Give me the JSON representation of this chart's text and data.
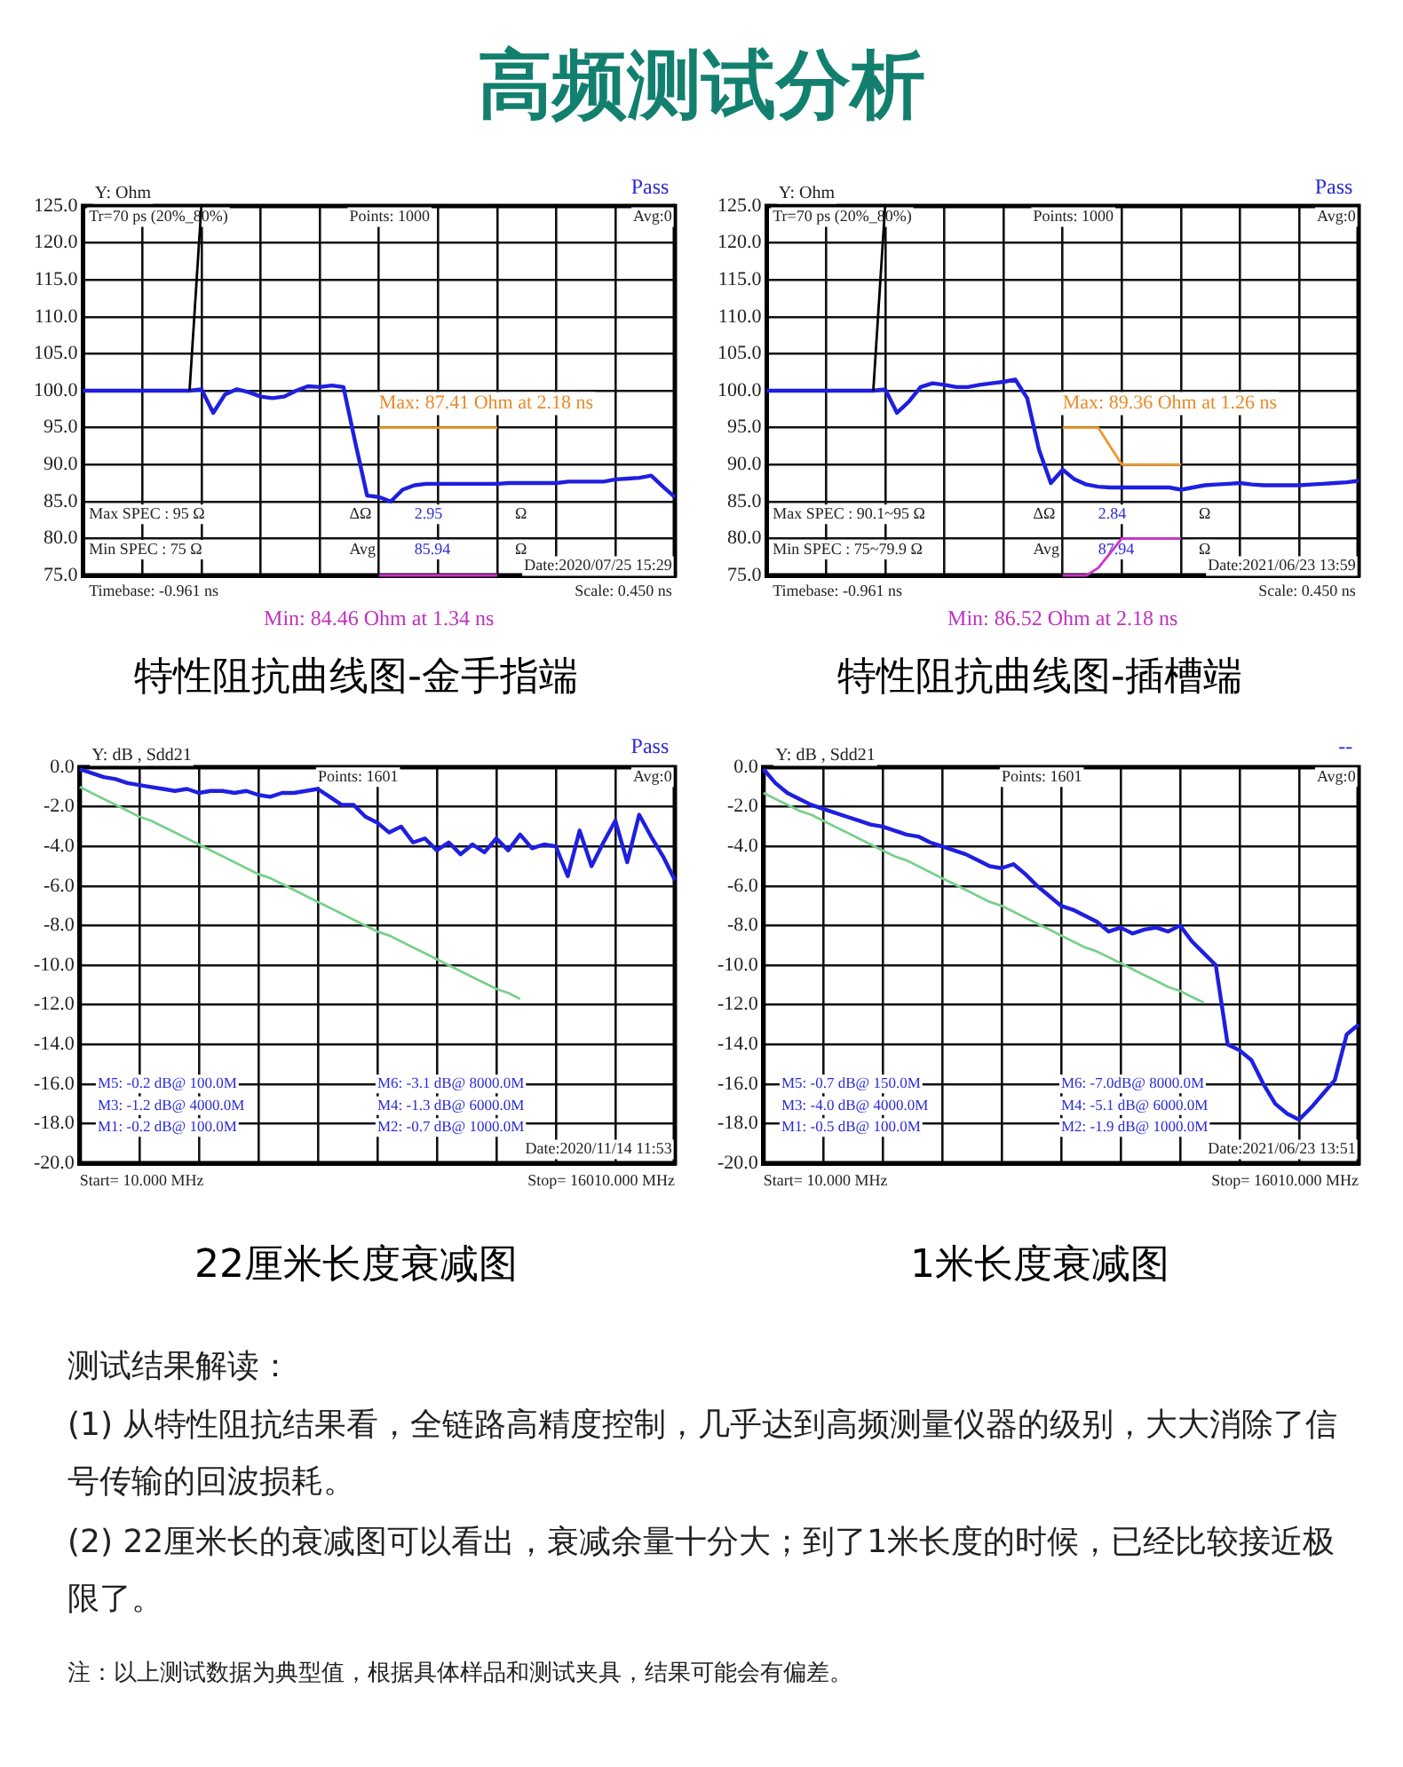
{
  "chart_data": [
    {
      "type": "other",
      "title": "高频测试分析"
    },
    {
      "type": "line",
      "title": "特性阻抗曲线图-金手指端",
      "grid": true,
      "legend": false,
      "tick_labels": "y",
      "marker": "none",
      "line_style": "solid",
      "categories": [
        null,
        null,
        null,
        null,
        null,
        null,
        null,
        null,
        null,
        null,
        null,
        null,
        null,
        null,
        null,
        null,
        null,
        null,
        null,
        null,
        null,
        null,
        null,
        null,
        null,
        null,
        null,
        null,
        null,
        null,
        null,
        null,
        null,
        null,
        null,
        null,
        null,
        null,
        null,
        null,
        null,
        null,
        null,
        null,
        null,
        null,
        null,
        null,
        null,
        null,
        null
      ],
      "ylim": [
        75,
        125
      ],
      "yticks": [
        {
          "value": 75,
          "label": "75.0"
        },
        {
          "value": 80,
          "label": "80.0"
        },
        {
          "value": 85,
          "label": "85.0"
        },
        {
          "value": 90,
          "label": "90.0"
        },
        {
          "value": 95,
          "label": "95.0"
        },
        {
          "value": 100,
          "label": "100.0"
        },
        {
          "value": 105,
          "label": "105.0"
        },
        {
          "value": 110,
          "label": "110.0"
        },
        {
          "value": 115,
          "label": "115.0"
        },
        {
          "value": 120,
          "label": "120.0"
        },
        {
          "value": 125,
          "label": "125.0"
        }
      ],
      "series": [
        {
          "color": "#000000",
          "values": [
            null,
            null,
            null,
            null,
            null,
            null,
            null,
            null,
            null,
            100,
            125,
            null,
            null,
            null,
            null,
            null,
            null,
            null,
            null,
            null,
            null,
            null,
            null,
            null,
            null,
            null,
            null,
            null,
            null,
            null,
            null,
            null,
            null,
            null,
            null,
            null,
            null,
            null,
            null,
            null,
            null,
            null,
            null,
            null,
            null,
            null,
            null,
            null,
            null,
            null,
            null
          ]
        },
        {
          "color": "#f0962e",
          "values": [
            null,
            null,
            null,
            null,
            null,
            null,
            null,
            null,
            null,
            null,
            null,
            null,
            null,
            null,
            null,
            null,
            null,
            null,
            null,
            null,
            null,
            null,
            null,
            null,
            null,
            95,
            95,
            95,
            95,
            95,
            95,
            95,
            95,
            95,
            95,
            95,
            null,
            null,
            null,
            null,
            null,
            null,
            null,
            null,
            null,
            null,
            null,
            null,
            null,
            null,
            null
          ]
        },
        {
          "color": "#cc33cc",
          "values": [
            null,
            null,
            null,
            null,
            null,
            null,
            null,
            null,
            null,
            null,
            null,
            null,
            null,
            null,
            null,
            null,
            null,
            null,
            null,
            null,
            null,
            null,
            null,
            null,
            null,
            75,
            75,
            75,
            75,
            75,
            75,
            75,
            75,
            75,
            75,
            75,
            null,
            null,
            null,
            null,
            null,
            null,
            null,
            null,
            null,
            null,
            null,
            null,
            null,
            null,
            null
          ]
        },
        {
          "color": "#1f1fe0",
          "values": [
            100,
            100,
            100,
            100,
            100,
            100,
            100,
            100,
            100,
            100,
            100.2,
            97,
            99.5,
            100.2,
            99.8,
            99.2,
            99,
            99.2,
            100,
            100.6,
            100.5,
            100.7,
            100.5,
            93,
            85.8,
            85.6,
            85,
            86.6,
            87.2,
            87.4,
            87.4,
            87.4,
            87.4,
            87.4,
            87.4,
            87.4,
            87.5,
            87.5,
            87.5,
            87.5,
            87.5,
            87.7,
            87.7,
            87.7,
            87.7,
            88,
            88.1,
            88.2,
            88.5,
            87,
            85.6
          ]
        }
      ],
      "annotations": [
        "Y: Ohm",
        "Pass",
        "Tr=70 ps (20%_80%)",
        "Points: 1000",
        "Avg:0",
        "Max: 87.41 Ohm at 2.18 ns",
        "Max SPEC : 95 Ω",
        "ΔΩ",
        "2.95",
        "Ω",
        "Min SPEC : 75 Ω",
        "Avg",
        "85.94",
        "Ω",
        "Date:2020/07/25 15:29",
        "Timebase: -0.961 ns",
        "Min: 84.46 Ohm at 1.34 ns",
        "Scale: 0.450 ns"
      ]
    },
    {
      "type": "line",
      "title": "特性阻抗曲线图-插槽端",
      "grid": true,
      "legend": false,
      "tick_labels": "y",
      "marker": "none",
      "line_style": "solid",
      "categories": [
        null,
        null,
        null,
        null,
        null,
        null,
        null,
        null,
        null,
        null,
        null,
        null,
        null,
        null,
        null,
        null,
        null,
        null,
        null,
        null,
        null,
        null,
        null,
        null,
        null,
        null,
        null,
        null,
        null,
        null,
        null,
        null,
        null,
        null,
        null,
        null,
        null,
        null,
        null,
        null,
        null,
        null,
        null,
        null,
        null,
        null,
        null,
        null,
        null,
        null,
        null
      ],
      "ylim": [
        75,
        125
      ],
      "yticks": [
        {
          "value": 75,
          "label": "75.0"
        },
        {
          "value": 80,
          "label": "80.0"
        },
        {
          "value": 85,
          "label": "85.0"
        },
        {
          "value": 90,
          "label": "90.0"
        },
        {
          "value": 95,
          "label": "95.0"
        },
        {
          "value": 100,
          "label": "100.0"
        },
        {
          "value": 105,
          "label": "105.0"
        },
        {
          "value": 110,
          "label": "110.0"
        },
        {
          "value": 115,
          "label": "115.0"
        },
        {
          "value": 120,
          "label": "120.0"
        },
        {
          "value": 125,
          "label": "125.0"
        }
      ],
      "series": [
        {
          "color": "#000000",
          "values": [
            null,
            null,
            null,
            null,
            null,
            null,
            null,
            null,
            null,
            100,
            125,
            null,
            null,
            null,
            null,
            null,
            null,
            null,
            null,
            null,
            null,
            null,
            null,
            null,
            null,
            null,
            null,
            null,
            null,
            null,
            null,
            null,
            null,
            null,
            null,
            null,
            null,
            null,
            null,
            null,
            null,
            null,
            null,
            null,
            null,
            null,
            null,
            null,
            null,
            null,
            null
          ]
        },
        {
          "color": "#f0962e",
          "values": [
            null,
            null,
            null,
            null,
            null,
            null,
            null,
            null,
            null,
            null,
            null,
            null,
            null,
            null,
            null,
            null,
            null,
            null,
            null,
            null,
            null,
            null,
            null,
            null,
            null,
            95,
            95,
            95,
            95,
            92.5,
            90,
            90,
            90,
            90,
            90,
            90,
            null,
            null,
            null,
            null,
            null,
            null,
            null,
            null,
            null,
            null,
            null,
            null,
            null,
            null,
            null
          ]
        },
        {
          "color": "#cc33cc",
          "values": [
            null,
            null,
            null,
            null,
            null,
            null,
            null,
            null,
            null,
            null,
            null,
            null,
            null,
            null,
            null,
            null,
            null,
            null,
            null,
            null,
            null,
            null,
            null,
            null,
            null,
            75,
            75,
            75,
            76,
            78,
            80,
            80,
            80,
            80,
            80,
            80,
            null,
            null,
            null,
            null,
            null,
            null,
            null,
            null,
            null,
            null,
            null,
            null,
            null,
            null,
            null
          ]
        },
        {
          "color": "#1f1fe0",
          "values": [
            100,
            100,
            100,
            100,
            100,
            100,
            100,
            100,
            100,
            100,
            100.2,
            97,
            98.5,
            100.5,
            101,
            100.8,
            100.5,
            100.5,
            100.8,
            101,
            101.2,
            101.5,
            99,
            92,
            87.5,
            89.3,
            88,
            87.3,
            87,
            86.9,
            86.9,
            86.9,
            86.9,
            86.9,
            86.9,
            86.6,
            86.9,
            87.2,
            87.3,
            87.4,
            87.5,
            87.3,
            87.2,
            87.2,
            87.2,
            87.2,
            87.3,
            87.4,
            87.5,
            87.6,
            87.8
          ]
        }
      ],
      "annotations": [
        "Y: Ohm",
        "Pass",
        "Tr=70 ps (20%_80%)",
        "Points: 1000",
        "Avg:0",
        "Max: 89.36 Ohm at 1.26 ns",
        "Max SPEC : 90.1~95 Ω",
        "ΔΩ",
        "2.84",
        "Ω",
        "Min SPEC : 75~79.9 Ω",
        "Avg",
        "87.94",
        "Ω",
        "Date:2021/06/23 13:59",
        "Timebase: -0.961 ns",
        "Min: 86.52 Ohm at 2.18 ns",
        "Scale: 0.450 ns"
      ]
    },
    {
      "type": "line",
      "title": "22厘米长度衰减图",
      "grid": true,
      "legend": false,
      "tick_labels": "y",
      "marker": "none",
      "line_style": "solid",
      "categories": [
        null,
        null,
        null,
        null,
        null,
        null,
        null,
        null,
        null,
        null,
        null,
        null,
        null,
        null,
        null,
        null,
        null,
        null,
        null,
        null,
        null,
        null,
        null,
        null,
        null,
        null,
        null,
        null,
        null,
        null,
        null,
        null,
        null,
        null,
        null,
        null,
        null,
        null,
        null,
        null,
        null,
        null,
        null,
        null,
        null,
        null,
        null,
        null,
        null,
        null,
        null
      ],
      "ylim": [
        -20,
        0
      ],
      "yticks": [
        {
          "value": -20,
          "label": "-20.0"
        },
        {
          "value": -18,
          "label": "-18.0"
        },
        {
          "value": -16,
          "label": "-16.0"
        },
        {
          "value": -14,
          "label": "-14.0"
        },
        {
          "value": -12,
          "label": "-12.0"
        },
        {
          "value": -10,
          "label": "-10.0"
        },
        {
          "value": -8,
          "label": "-8.0"
        },
        {
          "value": -6,
          "label": "-6.0"
        },
        {
          "value": -4,
          "label": "-4.0"
        },
        {
          "value": -2,
          "label": "-2.0"
        },
        {
          "value": 0,
          "label": "0.0"
        }
      ],
      "series": [
        {
          "color": "#7ccf8c",
          "values": [
            -1.0,
            -1.3,
            -1.6,
            -1.9,
            -2.2,
            -2.5,
            -2.7,
            -3.0,
            -3.3,
            -3.6,
            -3.9,
            -4.2,
            -4.5,
            -4.8,
            -5.1,
            -5.4,
            -5.6,
            -5.9,
            -6.2,
            -6.5,
            -6.8,
            -7.1,
            -7.4,
            -7.7,
            -8.0,
            -8.3,
            -8.5,
            -8.8,
            -9.1,
            -9.4,
            -9.7,
            -10.0,
            -10.3,
            -10.6,
            -10.9,
            -11.2,
            -11.4,
            -11.7,
            null,
            null,
            null,
            null,
            null,
            null,
            null,
            null,
            null,
            null,
            null,
            null,
            null
          ]
        },
        {
          "color": "#1f1fe0",
          "values": [
            -0.1,
            -0.3,
            -0.5,
            -0.6,
            -0.8,
            -0.9,
            -1.0,
            -1.1,
            -1.2,
            -1.1,
            -1.3,
            -1.2,
            -1.2,
            -1.3,
            -1.2,
            -1.4,
            -1.5,
            -1.3,
            -1.3,
            -1.2,
            -1.1,
            -1.5,
            -1.9,
            -1.9,
            -2.5,
            -2.8,
            -3.3,
            -3.0,
            -3.8,
            -3.6,
            -4.2,
            -3.8,
            -4.4,
            -3.9,
            -4.3,
            -3.6,
            -4.2,
            -3.4,
            -4.1,
            -3.9,
            -4.0,
            -5.5,
            -3.2,
            -5.0,
            -3.8,
            -2.7,
            -4.8,
            -2.4,
            -3.5,
            -4.5,
            -5.7
          ]
        }
      ],
      "annotations": [
        "Y: dB , Sdd21",
        "Pass",
        "Points: 1601",
        "Avg:0",
        "M5: -0.2 dB@ 100.0M",
        "M3: -1.2 dB@ 4000.0M",
        "M1: -0.2 dB@ 100.0M",
        "M6: -3.1 dB@ 8000.0M",
        "M4: -1.3 dB@ 6000.0M",
        "M2: -0.7 dB@ 1000.0M",
        "Date:2020/11/14 11:53",
        "Start= 10.000 MHz",
        "Stop= 16010.000 MHz"
      ]
    },
    {
      "type": "line",
      "title": "1米长度衰减图",
      "grid": true,
      "legend": false,
      "tick_labels": "y",
      "marker": "none",
      "line_style": "solid",
      "categories": [
        null,
        null,
        null,
        null,
        null,
        null,
        null,
        null,
        null,
        null,
        null,
        null,
        null,
        null,
        null,
        null,
        null,
        null,
        null,
        null,
        null,
        null,
        null,
        null,
        null,
        null,
        null,
        null,
        null,
        null,
        null,
        null,
        null,
        null,
        null,
        null,
        null,
        null,
        null,
        null,
        null,
        null,
        null,
        null,
        null,
        null,
        null,
        null,
        null,
        null,
        null
      ],
      "ylim": [
        -20,
        0
      ],
      "yticks": [
        {
          "value": -20,
          "label": "-20.0"
        },
        {
          "value": -18,
          "label": "-18.0"
        },
        {
          "value": -16,
          "label": "-16.0"
        },
        {
          "value": -14,
          "label": "-14.0"
        },
        {
          "value": -12,
          "label": "-12.0"
        },
        {
          "value": -10,
          "label": "-10.0"
        },
        {
          "value": -8,
          "label": "-8.0"
        },
        {
          "value": -6,
          "label": "-6.0"
        },
        {
          "value": -4,
          "label": "-4.0"
        },
        {
          "value": -2,
          "label": "-2.0"
        },
        {
          "value": 0,
          "label": "0.0"
        }
      ],
      "series": [
        {
          "color": "#7ccf8c",
          "values": [
            -1.3,
            -1.6,
            -1.9,
            -2.2,
            -2.4,
            -2.7,
            -3.0,
            -3.3,
            -3.6,
            -3.9,
            -4.2,
            -4.5,
            -4.7,
            -5.0,
            -5.3,
            -5.6,
            -5.9,
            -6.2,
            -6.5,
            -6.8,
            -7.0,
            -7.3,
            -7.6,
            -7.9,
            -8.2,
            -8.5,
            -8.8,
            -9.1,
            -9.3,
            -9.6,
            -9.9,
            -10.2,
            -10.5,
            -10.8,
            -11.1,
            -11.3,
            -11.6,
            -11.9,
            null,
            null,
            null,
            null,
            null,
            null,
            null,
            null,
            null,
            null,
            null,
            null,
            null
          ]
        },
        {
          "color": "#1f1fe0",
          "values": [
            -0.1,
            -0.8,
            -1.3,
            -1.6,
            -1.9,
            -2.1,
            -2.3,
            -2.5,
            -2.7,
            -2.9,
            -3.0,
            -3.2,
            -3.4,
            -3.5,
            -3.8,
            -4.0,
            -4.2,
            -4.4,
            -4.7,
            -5.0,
            -5.1,
            -4.9,
            -5.4,
            -6.0,
            -6.5,
            -7.0,
            -7.2,
            -7.5,
            -7.8,
            -8.3,
            -8.1,
            -8.4,
            -8.2,
            -8.1,
            -8.3,
            -8.0,
            -8.8,
            -9.4,
            -10.0,
            -14.0,
            -14.3,
            -14.8,
            -16.0,
            -17.0,
            -17.5,
            -17.8,
            -17.2,
            -16.5,
            -15.8,
            -13.5,
            -13.0
          ]
        }
      ],
      "annotations": [
        "Y: dB , Sdd21",
        "--",
        "Points: 1601",
        "Avg:0",
        "M5: -0.7 dB@ 150.0M",
        "M3: -4.0 dB@ 4000.0M",
        "M1: -0.5 dB@ 100.0M",
        "M6: -7.0dB@ 8000.0M",
        "M4: -5.1 dB@ 6000.0M",
        "M2: -1.9 dB@ 1000.0M",
        "Date:2021/06/23 13:51",
        "Start= 10.000 MHz",
        "Stop= 16010.000 MHz"
      ]
    },
    {
      "type": "other",
      "title": "测试结果解读：",
      "annotations": [
        "(1) 从特性阻抗结果看，全链路高精度控制，几乎达到高频测量仪器的级别，大大消除了信号传输的回波损耗。",
        "(2) 22厘米长的衰减图可以看出，衰减余量十分大；到了1米长度的时候，已经比较接近极限了。",
        "注：以上测试数据为典型值，根据具体样品和测试夹具，结果可能会有偏差。"
      ]
    }
  ]
}
